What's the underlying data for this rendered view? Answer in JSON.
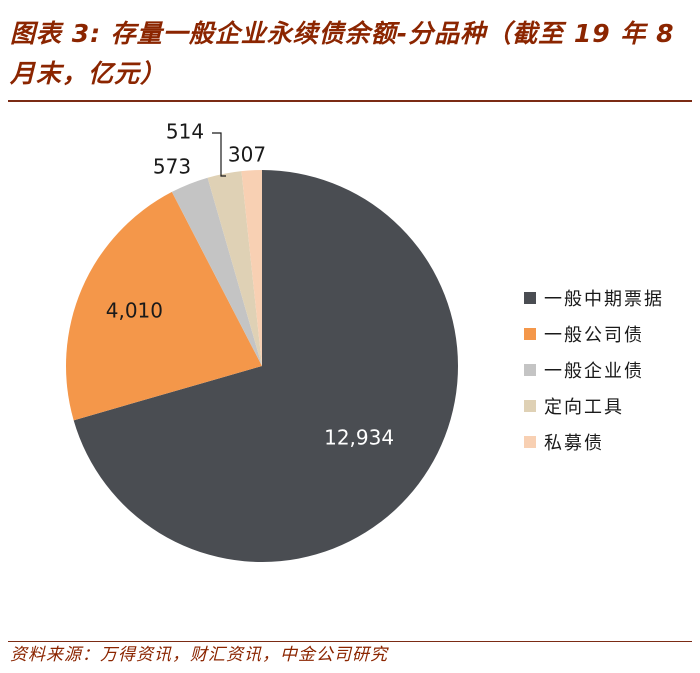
{
  "header": {
    "title": "图表 3: 存量一般企业永续债余额-分品种（截至 19 年 8 月末，亿元）"
  },
  "footer": {
    "source": "资料来源：万得资讯，财汇资讯，中金公司研究"
  },
  "chart_data": {
    "type": "pie",
    "title": "",
    "categories": [
      "一般中期票据",
      "一般公司债",
      "一般企业债",
      "定向工具",
      "私募债"
    ],
    "values": [
      12934,
      4010,
      573,
      514,
      307
    ],
    "labels": [
      "12,934",
      "4,010",
      "573",
      "514",
      "307"
    ],
    "colors": [
      "#4a4d52",
      "#f4974a",
      "#c4c4c4",
      "#dfd1b5",
      "#f8d0b3"
    ],
    "label_colors": [
      "#ffffff",
      "#1a1a1a",
      "#1a1a1a",
      "#1a1a1a",
      "#1a1a1a"
    ],
    "start": "12 o'clock",
    "direction": "clockwise",
    "legend": "right"
  }
}
